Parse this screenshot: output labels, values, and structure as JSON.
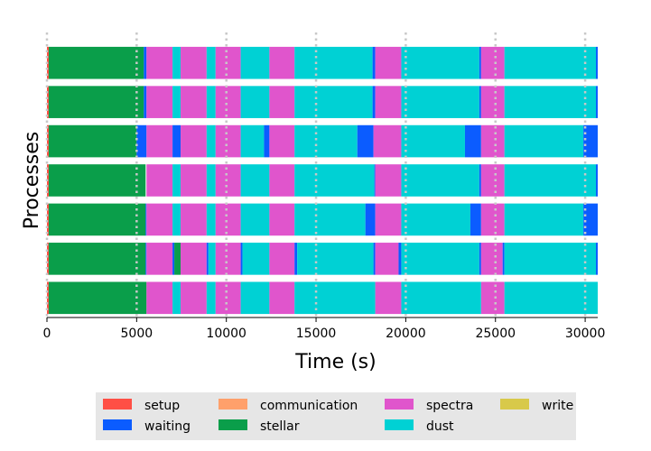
{
  "chart_data": {
    "type": "bar",
    "orientation": "horizontal-stacked-timeline",
    "xlabel": "Time (s)",
    "ylabel": "Processes",
    "xlim": [
      0,
      30700
    ],
    "xticks": [
      0,
      5000,
      10000,
      15000,
      20000,
      25000,
      30000
    ],
    "grid": "x, dotted",
    "legend_placement": "bottom",
    "categories": [
      {
        "name": "setup",
        "color": "#ff4f45"
      },
      {
        "name": "waiting",
        "color": "#0b5cff"
      },
      {
        "name": "communication",
        "color": "#ffa06b"
      },
      {
        "name": "stellar",
        "color": "#0a9e4a"
      },
      {
        "name": "spectra",
        "color": "#e055cc"
      },
      {
        "name": "dust",
        "color": "#00d1d4"
      },
      {
        "name": "write",
        "color": "#d8c94a"
      }
    ],
    "processes": [
      {
        "segments": [
          [
            "setup",
            0,
            100
          ],
          [
            "stellar",
            100,
            5400
          ],
          [
            "waiting",
            5400,
            5550
          ],
          [
            "spectra",
            5550,
            7000
          ],
          [
            "dust",
            7000,
            7450
          ],
          [
            "spectra",
            7450,
            8900
          ],
          [
            "dust",
            8900,
            9400
          ],
          [
            "spectra",
            9400,
            10800
          ],
          [
            "dust",
            10800,
            12400
          ],
          [
            "spectra",
            12400,
            13800
          ],
          [
            "dust",
            13800,
            18150
          ],
          [
            "waiting",
            18150,
            18300
          ],
          [
            "spectra",
            18300,
            19750
          ],
          [
            "dust",
            19750,
            24100
          ],
          [
            "waiting",
            24100,
            24200
          ],
          [
            "spectra",
            24200,
            25500
          ],
          [
            "dust",
            25500,
            30600
          ],
          [
            "waiting",
            30600,
            30700
          ]
        ]
      },
      {
        "segments": [
          [
            "setup",
            0,
            100
          ],
          [
            "stellar",
            100,
            5400
          ],
          [
            "waiting",
            5400,
            5550
          ],
          [
            "spectra",
            5550,
            7000
          ],
          [
            "dust",
            7000,
            7450
          ],
          [
            "spectra",
            7450,
            8900
          ],
          [
            "dust",
            8900,
            9400
          ],
          [
            "spectra",
            9400,
            10800
          ],
          [
            "dust",
            10800,
            12400
          ],
          [
            "spectra",
            12400,
            13800
          ],
          [
            "dust",
            13800,
            18150
          ],
          [
            "waiting",
            18150,
            18300
          ],
          [
            "spectra",
            18300,
            19750
          ],
          [
            "dust",
            19750,
            24100
          ],
          [
            "waiting",
            24100,
            24200
          ],
          [
            "spectra",
            24200,
            25500
          ],
          [
            "dust",
            25500,
            30600
          ],
          [
            "waiting",
            30600,
            30700
          ]
        ]
      },
      {
        "segments": [
          [
            "setup",
            0,
            100
          ],
          [
            "stellar",
            100,
            5000
          ],
          [
            "waiting",
            5000,
            5550
          ],
          [
            "spectra",
            5550,
            7000
          ],
          [
            "waiting",
            7000,
            7450
          ],
          [
            "spectra",
            7450,
            8900
          ],
          [
            "dust",
            8900,
            9400
          ],
          [
            "spectra",
            9400,
            10800
          ],
          [
            "dust",
            10800,
            12100
          ],
          [
            "waiting",
            12100,
            12400
          ],
          [
            "spectra",
            12400,
            13800
          ],
          [
            "dust",
            13800,
            17300
          ],
          [
            "waiting",
            17300,
            18200
          ],
          [
            "spectra",
            18200,
            19750
          ],
          [
            "dust",
            19750,
            23300
          ],
          [
            "waiting",
            23300,
            24200
          ],
          [
            "spectra",
            24200,
            25500
          ],
          [
            "dust",
            25500,
            29900
          ],
          [
            "waiting",
            29900,
            30700
          ]
        ]
      },
      {
        "segments": [
          [
            "setup",
            0,
            100
          ],
          [
            "stellar",
            100,
            5500
          ],
          [
            "spectra",
            5550,
            7000
          ],
          [
            "dust",
            7000,
            7450
          ],
          [
            "spectra",
            7450,
            8900
          ],
          [
            "dust",
            8900,
            9400
          ],
          [
            "spectra",
            9400,
            10800
          ],
          [
            "dust",
            10800,
            12400
          ],
          [
            "spectra",
            12400,
            13800
          ],
          [
            "dust",
            13800,
            18250
          ],
          [
            "waiting",
            18250,
            18300
          ],
          [
            "spectra",
            18300,
            19750
          ],
          [
            "dust",
            19750,
            24100
          ],
          [
            "waiting",
            24100,
            24200
          ],
          [
            "spectra",
            24200,
            25500
          ],
          [
            "dust",
            25500,
            30600
          ],
          [
            "waiting",
            30600,
            30700
          ]
        ]
      },
      {
        "segments": [
          [
            "setup",
            0,
            100
          ],
          [
            "stellar",
            100,
            5500
          ],
          [
            "waiting",
            5500,
            5550
          ],
          [
            "spectra",
            5550,
            7000
          ],
          [
            "dust",
            7000,
            7450
          ],
          [
            "spectra",
            7450,
            8900
          ],
          [
            "dust",
            8900,
            9400
          ],
          [
            "spectra",
            9400,
            10800
          ],
          [
            "dust",
            10800,
            12400
          ],
          [
            "spectra",
            12400,
            13800
          ],
          [
            "dust",
            13800,
            17750
          ],
          [
            "waiting",
            17750,
            18300
          ],
          [
            "spectra",
            18300,
            19750
          ],
          [
            "dust",
            19750,
            23600
          ],
          [
            "waiting",
            23600,
            24200
          ],
          [
            "spectra",
            24200,
            25500
          ],
          [
            "dust",
            25500,
            29900
          ],
          [
            "waiting",
            29900,
            30700
          ]
        ]
      },
      {
        "segments": [
          [
            "setup",
            0,
            100
          ],
          [
            "stellar",
            100,
            5500
          ],
          [
            "waiting",
            5500,
            5550
          ],
          [
            "spectra",
            5550,
            7000
          ],
          [
            "waiting",
            7000,
            7100
          ],
          [
            "stellar",
            7100,
            7450
          ],
          [
            "spectra",
            7450,
            8900
          ],
          [
            "waiting",
            8900,
            9000
          ],
          [
            "dust",
            9000,
            9400
          ],
          [
            "spectra",
            9400,
            10800
          ],
          [
            "waiting",
            10800,
            10900
          ],
          [
            "dust",
            10900,
            12400
          ],
          [
            "spectra",
            12400,
            13800
          ],
          [
            "waiting",
            13800,
            13950
          ],
          [
            "dust",
            13950,
            18200
          ],
          [
            "waiting",
            18200,
            18300
          ],
          [
            "spectra",
            18300,
            19600
          ],
          [
            "waiting",
            19600,
            19750
          ],
          [
            "dust",
            19750,
            24100
          ],
          [
            "waiting",
            24100,
            24200
          ],
          [
            "spectra",
            24200,
            25400
          ],
          [
            "waiting",
            25400,
            25500
          ],
          [
            "dust",
            25500,
            30600
          ],
          [
            "waiting",
            30600,
            30700
          ]
        ]
      },
      {
        "segments": [
          [
            "setup",
            0,
            100
          ],
          [
            "stellar",
            100,
            5550
          ],
          [
            "spectra",
            5550,
            7000
          ],
          [
            "dust",
            7000,
            7450
          ],
          [
            "spectra",
            7450,
            8900
          ],
          [
            "dust",
            8900,
            9400
          ],
          [
            "spectra",
            9400,
            10800
          ],
          [
            "dust",
            10800,
            12400
          ],
          [
            "spectra",
            12400,
            13800
          ],
          [
            "dust",
            13800,
            18300
          ],
          [
            "spectra",
            18300,
            19750
          ],
          [
            "dust",
            19750,
            24200
          ],
          [
            "spectra",
            24200,
            25500
          ],
          [
            "dust",
            25500,
            30700
          ]
        ]
      }
    ]
  }
}
